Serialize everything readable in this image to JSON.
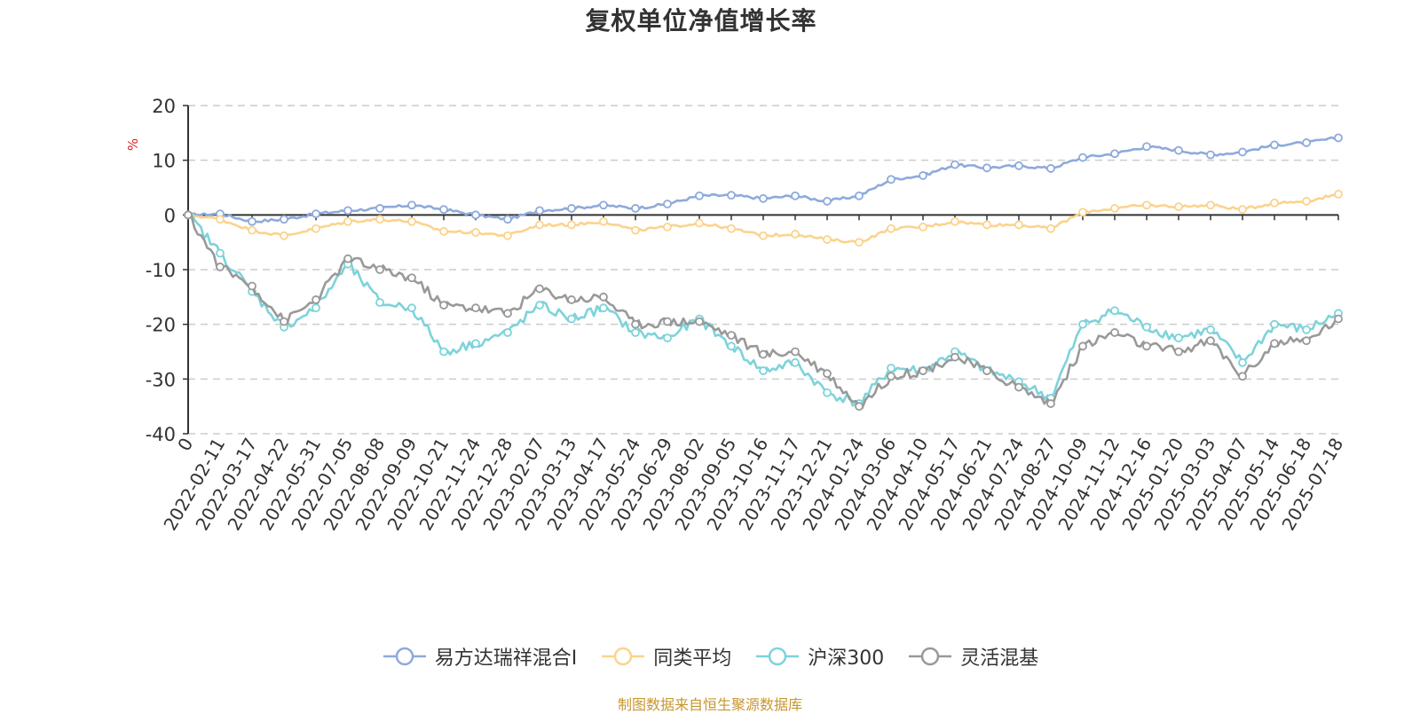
{
  "chart_data": {
    "type": "line",
    "title": "复权单位净值增长率",
    "ylabel": "%",
    "ylim": [
      -40,
      20
    ],
    "yticks": [
      20,
      10,
      0,
      -10,
      -20,
      -30,
      -40
    ],
    "grid": true,
    "legend_position": "bottom",
    "x_labels": [
      "0",
      "2022-02-11",
      "2022-03-17",
      "2022-04-22",
      "2022-05-31",
      "2022-07-05",
      "2022-08-08",
      "2022-09-09",
      "2022-10-21",
      "2022-11-24",
      "2022-12-28",
      "2023-02-07",
      "2023-03-13",
      "2023-04-17",
      "2023-05-24",
      "2023-06-29",
      "2023-08-02",
      "2023-09-05",
      "2023-10-16",
      "2023-11-17",
      "2023-12-21",
      "2024-01-24",
      "2024-03-06",
      "2024-04-10",
      "2024-05-17",
      "2024-06-21",
      "2024-07-24",
      "2024-08-27",
      "2024-10-09",
      "2024-11-12",
      "2024-12-16",
      "2025-01-20",
      "2025-03-03",
      "2025-04-07",
      "2025-05-14",
      "2025-06-18",
      "2025-07-18"
    ],
    "series": [
      {
        "name": "易方达瑞祥混合I",
        "color": "#8eaadc",
        "values": [
          0,
          0.2,
          -1.2,
          -0.8,
          0.2,
          0.8,
          1.2,
          1.8,
          1.0,
          0,
          -0.8,
          0.8,
          1.2,
          1.8,
          1.2,
          2.0,
          3.5,
          3.6,
          3.0,
          3.5,
          2.5,
          3.5,
          6.5,
          7.2,
          9.2,
          8.6,
          9.0,
          8.5,
          10.5,
          11.2,
          12.5,
          11.8,
          11.0,
          11.5,
          12.8,
          13.2,
          14.1
        ]
      },
      {
        "name": "同类平均",
        "color": "#fbd38d",
        "values": [
          0,
          -0.8,
          -2.8,
          -3.8,
          -2.5,
          -1.2,
          -0.8,
          -1.2,
          -3.0,
          -3.2,
          -3.8,
          -1.8,
          -1.8,
          -1.2,
          -2.8,
          -2.2,
          -1.5,
          -2.5,
          -3.8,
          -3.5,
          -4.5,
          -5.0,
          -2.5,
          -2.2,
          -1.2,
          -1.8,
          -1.8,
          -2.5,
          0.5,
          1.2,
          1.8,
          1.5,
          1.8,
          1.0,
          2.2,
          2.5,
          3.8
        ]
      },
      {
        "name": "沪深300",
        "color": "#7dd3db",
        "values": [
          0,
          -7.0,
          -14.0,
          -20.5,
          -17.0,
          -9.0,
          -16.0,
          -17.0,
          -25.0,
          -23.5,
          -21.5,
          -16.5,
          -19.0,
          -17.0,
          -21.5,
          -22.5,
          -19.0,
          -24.0,
          -28.5,
          -27.0,
          -32.5,
          -34.5,
          -28.0,
          -28.5,
          -25.0,
          -28.5,
          -30.5,
          -33.5,
          -20.0,
          -17.5,
          -20.5,
          -22.5,
          -21.0,
          -27.0,
          -20.0,
          -21.0,
          -18.0
        ]
      },
      {
        "name": "灵活混基",
        "color": "#999999",
        "values": [
          0,
          -9.5,
          -13.0,
          -19.5,
          -15.5,
          -8.0,
          -10.0,
          -11.5,
          -16.5,
          -17.0,
          -18.0,
          -13.5,
          -15.5,
          -15.0,
          -20.0,
          -19.5,
          -19.5,
          -22.0,
          -25.5,
          -25.0,
          -29.0,
          -35.0,
          -29.5,
          -28.5,
          -26.0,
          -28.5,
          -31.5,
          -34.5,
          -24.0,
          -21.5,
          -24.0,
          -25.0,
          -23.0,
          -29.5,
          -23.5,
          -23.0,
          -19.0
        ]
      }
    ]
  },
  "source_note": "制图数据来自恒生聚源数据库"
}
